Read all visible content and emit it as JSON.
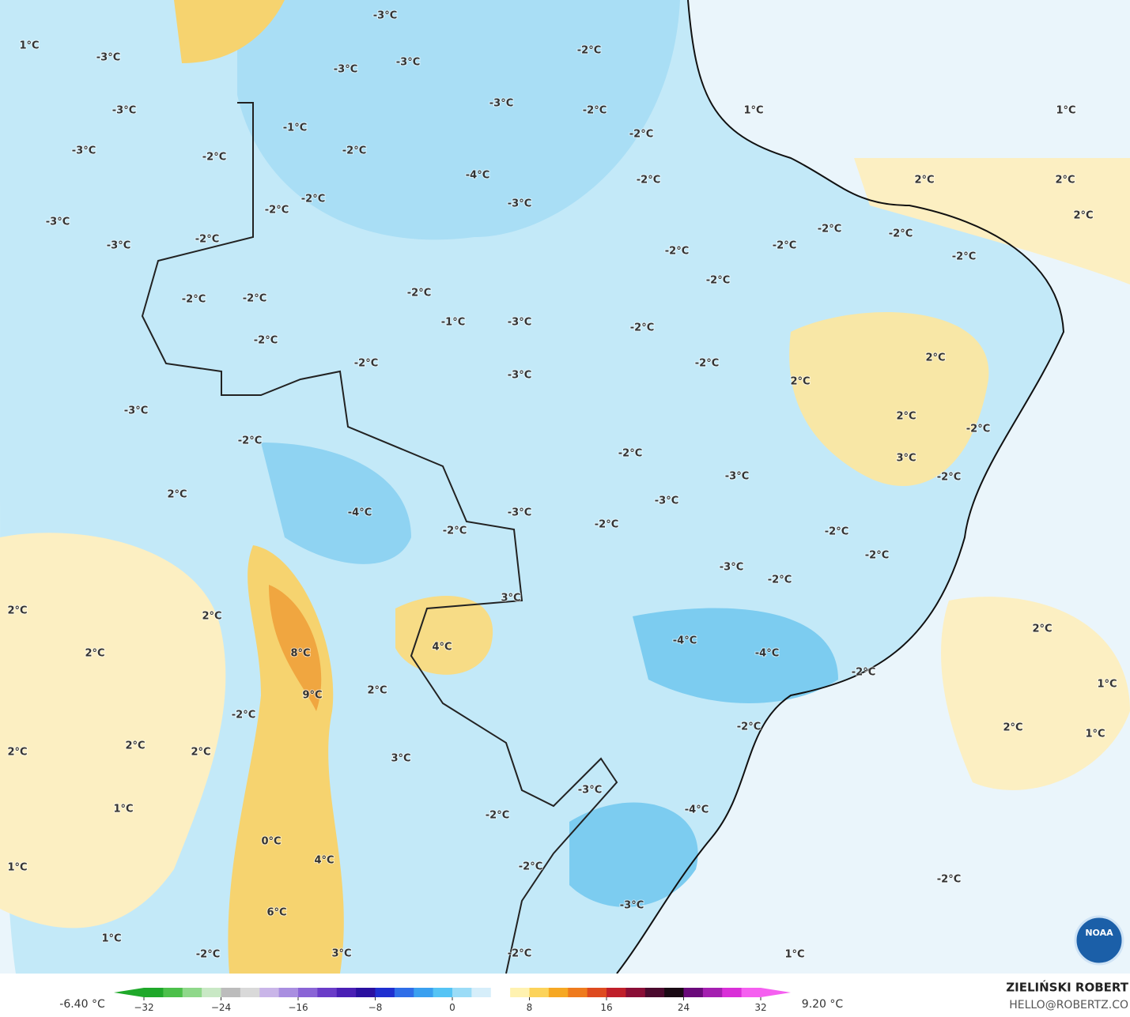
{
  "logo_text": "NOAA",
  "footer": {
    "author": "ZIELIŃSKI ROBERT",
    "email": "HELLO@ROBERTZ.CO"
  },
  "colorbar": {
    "min_label": "-6.40 °C",
    "max_label": "9.20 °C",
    "lim": [
      -32,
      32
    ],
    "ticks": [
      {
        "value": -32,
        "label": "−32"
      },
      {
        "value": -24,
        "label": "−24"
      },
      {
        "value": -16,
        "label": "−16"
      },
      {
        "value": -8,
        "label": "−8"
      },
      0,
      8,
      16,
      24,
      32
    ],
    "colors": [
      "#1fa82a",
      "#4cc04a",
      "#8fd88a",
      "#c9e8c5",
      "#bcbcbc",
      "#d9d9d9",
      "#c9b5e8",
      "#a98ee0",
      "#8a64d6",
      "#6a3cc8",
      "#4a1fb5",
      "#2a10a0",
      "#1f2fd0",
      "#2f6ee8",
      "#3aa0f0",
      "#55c4f5",
      "#9bdcf7",
      "#d6eefa",
      "#ffffff",
      "#fff2b0",
      "#fcd35a",
      "#f6a823",
      "#ef7b1d",
      "#de4a1f",
      "#c01f2a",
      "#8a0e36",
      "#4b0a2e",
      "#1a0a14",
      "#6a0a7a",
      "#a41fb0",
      "#d92fd8",
      "#f55ff0"
    ]
  },
  "map_labels": [
    "1°C",
    "-3°C",
    "-3°C",
    "-3°C",
    "-3°C",
    "-2°C",
    "-3°C",
    "-3°C",
    "-2°C",
    "1°C",
    "1°C",
    "-1°C",
    "-2°C",
    "-3°C",
    "-2°C",
    "-2°C",
    "-4°C",
    "-2°C",
    "2°C",
    "2°C",
    "-3°C",
    "-2°C",
    "-2°C",
    "2°C",
    "-3°C",
    "-2°C",
    "-2°C",
    "-2°C",
    "-2°C",
    "-3°C",
    "-2°C",
    "-2°C",
    "-2°C",
    "-2°C",
    "-2°C",
    "-2°C",
    "-1°C",
    "-3°C",
    "-2°C",
    "-2°C",
    "-2°C",
    "-2°C",
    "2°C",
    "2°C",
    "-3°C",
    "2°C",
    "-3°C",
    "-2°C",
    "-2°C",
    "-2°C",
    "3°C",
    "-3°C",
    "-2°C",
    "2°C",
    "-3°C",
    "-4°C",
    "-3°C",
    "-2°C",
    "-2°C",
    "-2°C",
    "-2°C",
    "-3°C",
    "-2°C",
    "3°C",
    "2°C",
    "2°C",
    "2°C",
    "-4°C",
    "4°C",
    "-4°C",
    "2°C",
    "8°C",
    "-2°C",
    "1°C",
    "2°C",
    "9°C",
    "-2°C",
    "-2°C",
    "2°C",
    "1°C",
    "2°C",
    "2°C",
    "2°C",
    "3°C",
    "-3°C",
    "-4°C",
    "1°C",
    "-2°C",
    "0°C",
    "4°C",
    "1°C",
    "-2°C",
    "-2°C",
    "-3°C",
    "6°C",
    "1°C",
    "-2°C",
    "1°C",
    "-2°C",
    "3°C"
  ]
}
